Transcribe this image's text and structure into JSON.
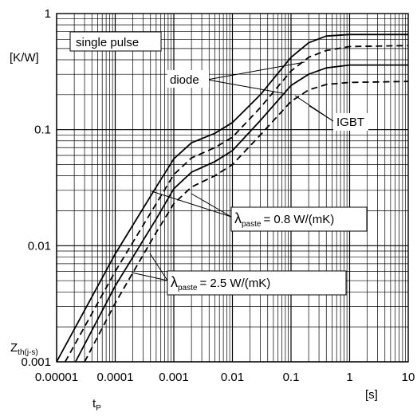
{
  "chart_data": {
    "type": "line",
    "x_scale": "log",
    "y_scale": "log",
    "xlim": [
      1e-05,
      10
    ],
    "ylim": [
      0.001,
      1
    ],
    "x_ticks": [
      "0.00001",
      "0.0001",
      "0.001",
      "0.01",
      "0.1",
      "1",
      "10"
    ],
    "y_ticks": [
      "0.001",
      "0.01",
      "0.1",
      "1"
    ],
    "y_unit": "[K/W]",
    "y_label_main": "Z",
    "y_label_sub": "th(j-s)",
    "x_label_main": "t",
    "x_label_sub": "P",
    "x_unit": "[s]",
    "grid": true,
    "annotations": {
      "box": "single pulse",
      "diode": "diode",
      "igbt": "IGBT",
      "lambda_symbol": "λ",
      "lambda_sub": "paste",
      "paste_08": "= 0.8 W/(mK)",
      "paste_25": "= 2.5 W/(mK)"
    },
    "series": [
      {
        "style": "solid",
        "x": [
          1e-05,
          0.0001,
          0.0005,
          0.001,
          0.002,
          0.005,
          0.01,
          0.03,
          0.1,
          0.2,
          0.4,
          1,
          10
        ],
        "y": [
          0.001,
          0.0085,
          0.032,
          0.056,
          0.077,
          0.093,
          0.115,
          0.2,
          0.42,
          0.56,
          0.64,
          0.66,
          0.66
        ]
      },
      {
        "style": "dashed",
        "x": [
          1.4e-05,
          0.0001,
          0.0005,
          0.001,
          0.002,
          0.005,
          0.01,
          0.03,
          0.1,
          0.2,
          0.4,
          1,
          10
        ],
        "y": [
          0.001,
          0.006,
          0.023,
          0.041,
          0.057,
          0.07,
          0.086,
          0.155,
          0.32,
          0.42,
          0.48,
          0.52,
          0.53
        ]
      },
      {
        "style": "solid",
        "x": [
          2.1e-05,
          0.0001,
          0.0005,
          0.001,
          0.002,
          0.005,
          0.01,
          0.03,
          0.1,
          0.2,
          0.4,
          1,
          10
        ],
        "y": [
          0.001,
          0.0045,
          0.017,
          0.031,
          0.043,
          0.053,
          0.066,
          0.12,
          0.24,
          0.3,
          0.34,
          0.36,
          0.36
        ]
      },
      {
        "style": "dashed",
        "x": [
          3e-05,
          0.0001,
          0.0005,
          0.001,
          0.002,
          0.005,
          0.01,
          0.03,
          0.1,
          0.2,
          0.4,
          1,
          10
        ],
        "y": [
          0.001,
          0.0032,
          0.013,
          0.023,
          0.032,
          0.04,
          0.05,
          0.09,
          0.175,
          0.22,
          0.245,
          0.255,
          0.26
        ]
      }
    ]
  }
}
